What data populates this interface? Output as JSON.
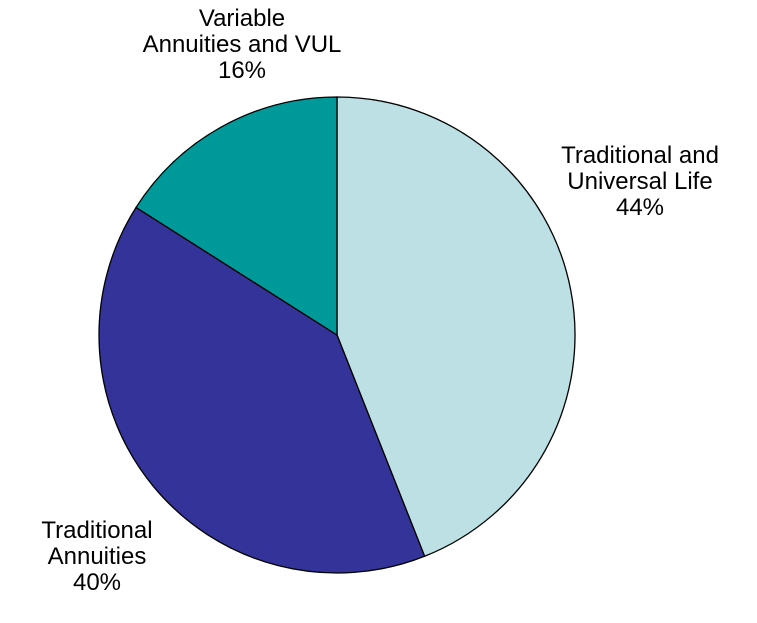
{
  "chart_data": {
    "type": "pie",
    "categories": [
      "Traditional and\nUniversal Life",
      "Traditional\nAnnuities",
      "Variable\nAnnuities and VUL"
    ],
    "values": [
      44,
      40,
      16
    ],
    "value_labels": [
      "44%",
      "40%",
      "16%"
    ],
    "colors": [
      "#bce0e3",
      "#333399",
      "#009999"
    ]
  }
}
